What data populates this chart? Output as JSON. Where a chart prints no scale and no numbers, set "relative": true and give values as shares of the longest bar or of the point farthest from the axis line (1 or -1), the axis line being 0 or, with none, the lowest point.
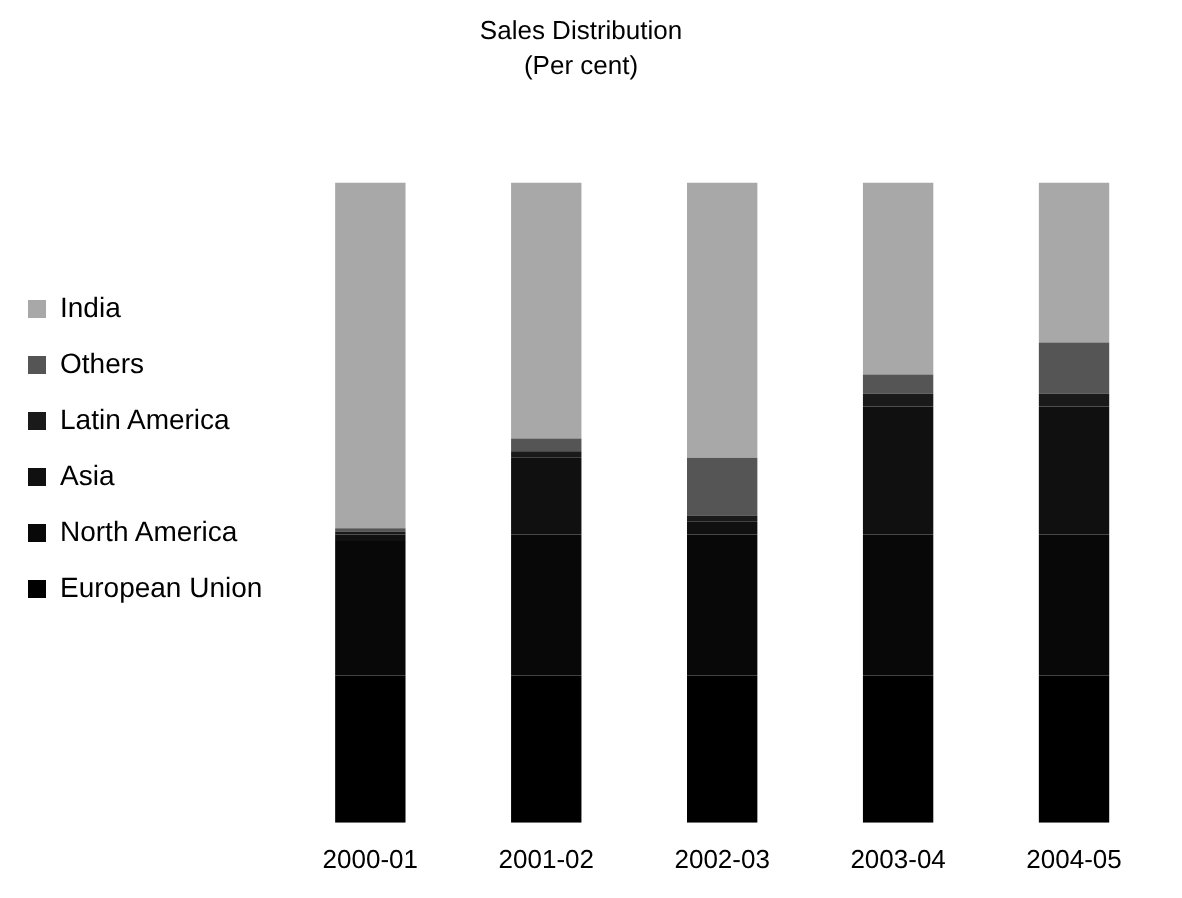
{
  "chart_data": {
    "type": "bar",
    "title": "Sales Distribution",
    "subtitle": "(Per cent)",
    "relative": true,
    "stacked": true,
    "legend": "left",
    "categories": [
      "2000-01",
      "2001-02",
      "2002-03",
      "2003-04",
      "2004-05"
    ],
    "series": [
      {
        "name": "European Union",
        "color": "#000000",
        "values": [
          0.23,
          0.23,
          0.23,
          0.23,
          0.23
        ]
      },
      {
        "name": "North America",
        "color": "#080808",
        "values": [
          0.21,
          0.22,
          0.22,
          0.22,
          0.22
        ]
      },
      {
        "name": "Asia",
        "color": "#101010",
        "values": [
          0.01,
          0.12,
          0.02,
          0.2,
          0.2
        ]
      },
      {
        "name": "Latin America",
        "color": "#1a1a1a",
        "values": [
          0.005,
          0.01,
          0.01,
          0.02,
          0.02
        ]
      },
      {
        "name": "Others",
        "color": "#555555",
        "values": [
          0.005,
          0.02,
          0.09,
          0.03,
          0.08
        ]
      },
      {
        "name": "India",
        "color": "#a8a8a8",
        "values": [
          0.54,
          0.4,
          0.43,
          0.3,
          0.25
        ]
      }
    ]
  }
}
